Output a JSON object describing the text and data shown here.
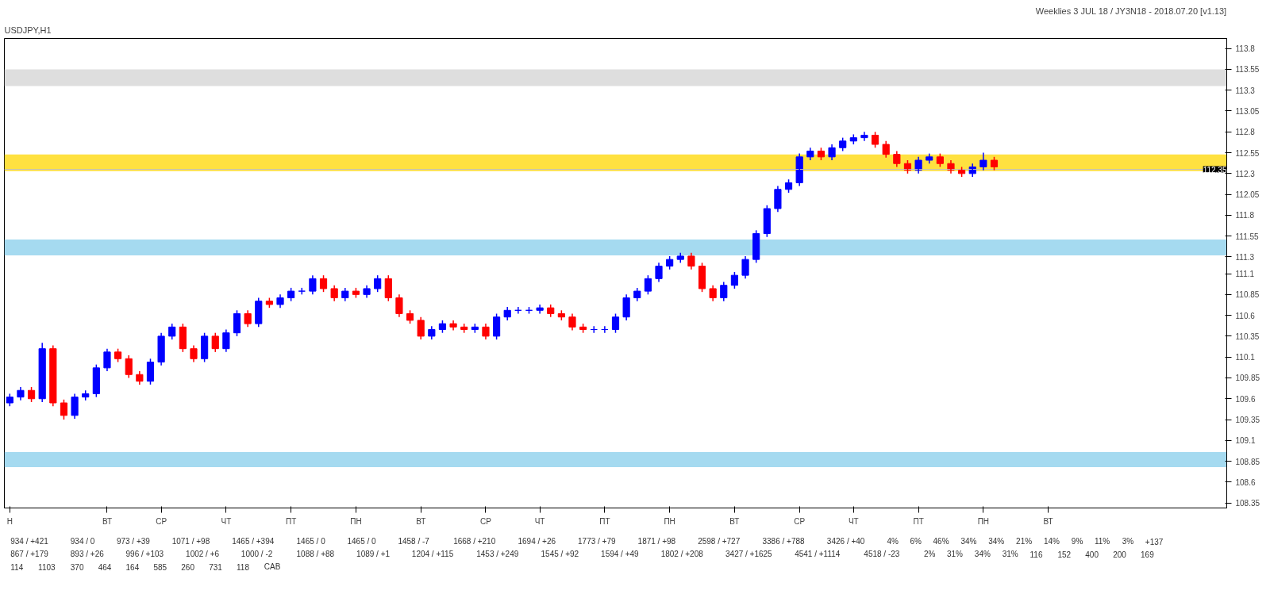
{
  "chart_data": {
    "type": "candlestick",
    "title": "USDJPY,H1",
    "subtitle": "Weeklies 3 JUL 18 / JY3N18 - 2018.07.20 [v1.13]",
    "categories": [
      "Н",
      null,
      null,
      null,
      null,
      null,
      null,
      null,
      null,
      "ВТ",
      null,
      null,
      null,
      null,
      "СР",
      null,
      null,
      null,
      null,
      null,
      "ЧТ",
      null,
      null,
      null,
      null,
      null,
      "ПТ",
      null,
      null,
      null,
      null,
      null,
      "ПН",
      null,
      null,
      null,
      null,
      null,
      "ВТ",
      null,
      null,
      null,
      null,
      null,
      "СР",
      null,
      null,
      null,
      null,
      "ЧТ",
      null,
      null,
      null,
      null,
      null,
      "ПТ",
      null,
      null,
      null,
      null,
      null,
      "ПН",
      null,
      null,
      null,
      null,
      null,
      "ВТ",
      null,
      null,
      null,
      null,
      null,
      "СР",
      null,
      null,
      null,
      null,
      "ЧТ",
      null,
      null,
      null,
      null,
      null,
      "ПТ",
      null,
      null,
      null,
      null,
      null,
      "ПН",
      null,
      null,
      null,
      null,
      null,
      "ВТ",
      null,
      null,
      null,
      null,
      null,
      null,
      null,
      null,
      null,
      null,
      null,
      null,
      null,
      null,
      null,
      null
    ],
    "ohlc": [
      [
        109.55,
        109.66,
        109.51,
        109.62
      ],
      [
        109.62,
        109.74,
        109.58,
        109.7
      ],
      [
        109.7,
        109.74,
        109.56,
        109.6
      ],
      [
        109.6,
        110.27,
        109.56,
        110.2
      ],
      [
        110.2,
        110.24,
        109.51,
        109.55
      ],
      [
        109.55,
        109.59,
        109.35,
        109.4
      ],
      [
        109.4,
        109.66,
        109.36,
        109.62
      ],
      [
        109.62,
        109.7,
        109.58,
        109.66
      ],
      [
        109.66,
        110.01,
        109.62,
        109.97
      ],
      [
        109.97,
        110.2,
        109.93,
        110.16
      ],
      [
        110.16,
        110.2,
        110.04,
        110.08
      ],
      [
        110.08,
        110.12,
        109.85,
        109.89
      ],
      [
        109.89,
        109.93,
        109.77,
        109.81
      ],
      [
        109.81,
        110.08,
        109.77,
        110.04
      ],
      [
        110.04,
        110.39,
        110.0,
        110.35
      ],
      [
        110.35,
        110.5,
        110.31,
        110.46
      ],
      [
        110.46,
        110.5,
        110.16,
        110.2
      ],
      [
        110.2,
        110.24,
        110.04,
        110.08
      ],
      [
        110.08,
        110.39,
        110.04,
        110.35
      ],
      [
        110.35,
        110.39,
        110.16,
        110.2
      ],
      [
        110.2,
        110.43,
        110.16,
        110.39
      ],
      [
        110.39,
        110.66,
        110.35,
        110.62
      ],
      [
        110.62,
        110.66,
        110.46,
        110.5
      ],
      [
        110.5,
        110.81,
        110.46,
        110.77
      ],
      [
        110.77,
        110.81,
        110.69,
        110.73
      ],
      [
        110.73,
        110.85,
        110.69,
        110.81
      ],
      [
        110.81,
        110.93,
        110.77,
        110.89
      ],
      [
        110.89,
        110.93,
        110.85,
        110.89
      ],
      [
        110.89,
        111.08,
        110.85,
        111.04
      ],
      [
        111.04,
        111.08,
        110.88,
        110.92
      ],
      [
        110.92,
        110.96,
        110.77,
        110.81
      ],
      [
        110.81,
        110.93,
        110.77,
        110.89
      ],
      [
        110.89,
        110.93,
        110.81,
        110.85
      ],
      [
        110.85,
        110.96,
        110.81,
        110.92
      ],
      [
        110.92,
        111.08,
        110.88,
        111.04
      ],
      [
        111.04,
        111.08,
        110.77,
        110.81
      ],
      [
        110.81,
        110.85,
        110.58,
        110.62
      ],
      [
        110.62,
        110.66,
        110.5,
        110.54
      ],
      [
        110.54,
        110.58,
        110.31,
        110.35
      ],
      [
        110.35,
        110.47,
        110.31,
        110.43
      ],
      [
        110.43,
        110.54,
        110.39,
        110.5
      ],
      [
        110.5,
        110.54,
        110.42,
        110.46
      ],
      [
        110.46,
        110.5,
        110.39,
        110.43
      ],
      [
        110.43,
        110.5,
        110.39,
        110.46
      ],
      [
        110.46,
        110.5,
        110.31,
        110.35
      ],
      [
        110.35,
        110.62,
        110.31,
        110.58
      ],
      [
        110.58,
        110.7,
        110.54,
        110.66
      ],
      [
        110.66,
        110.7,
        110.62,
        110.66
      ],
      [
        110.66,
        110.7,
        110.62,
        110.66
      ],
      [
        110.66,
        110.73,
        110.62,
        110.69
      ],
      [
        110.69,
        110.73,
        110.58,
        110.62
      ],
      [
        110.62,
        110.66,
        110.54,
        110.58
      ],
      [
        110.58,
        110.62,
        110.42,
        110.46
      ],
      [
        110.46,
        110.5,
        110.39,
        110.43
      ],
      [
        110.43,
        110.47,
        110.39,
        110.43
      ],
      [
        110.43,
        110.47,
        110.39,
        110.43
      ],
      [
        110.43,
        110.62,
        110.39,
        110.58
      ],
      [
        110.58,
        110.85,
        110.54,
        110.81
      ],
      [
        110.81,
        110.93,
        110.77,
        110.89
      ],
      [
        110.89,
        111.08,
        110.85,
        111.04
      ],
      [
        111.04,
        111.23,
        111.0,
        111.19
      ],
      [
        111.19,
        111.31,
        111.15,
        111.27
      ],
      [
        111.27,
        111.35,
        111.23,
        111.31
      ],
      [
        111.31,
        111.35,
        111.15,
        111.19
      ],
      [
        111.19,
        111.23,
        110.88,
        110.92
      ],
      [
        110.92,
        110.96,
        110.77,
        110.81
      ],
      [
        110.81,
        111.0,
        110.77,
        110.96
      ],
      [
        110.96,
        111.12,
        110.92,
        111.08
      ],
      [
        111.08,
        111.31,
        111.04,
        111.27
      ],
      [
        111.27,
        111.62,
        111.23,
        111.58
      ],
      [
        111.58,
        111.92,
        111.54,
        111.88
      ],
      [
        111.88,
        112.15,
        111.84,
        112.11
      ],
      [
        112.11,
        112.23,
        112.07,
        112.19
      ],
      [
        112.19,
        112.54,
        112.15,
        112.5
      ],
      [
        112.5,
        112.61,
        112.46,
        112.57
      ],
      [
        112.57,
        112.61,
        112.46,
        112.5
      ],
      [
        112.5,
        112.65,
        112.46,
        112.61
      ],
      [
        112.61,
        112.73,
        112.57,
        112.69
      ],
      [
        112.69,
        112.77,
        112.65,
        112.73
      ],
      [
        112.73,
        112.8,
        112.69,
        112.76
      ],
      [
        112.76,
        112.8,
        112.61,
        112.65
      ],
      [
        112.65,
        112.69,
        112.49,
        112.53
      ],
      [
        112.53,
        112.57,
        112.38,
        112.42
      ],
      [
        112.42,
        112.46,
        112.3,
        112.34
      ],
      [
        112.34,
        112.5,
        112.3,
        112.46
      ],
      [
        112.46,
        112.54,
        112.42,
        112.5
      ],
      [
        112.5,
        112.54,
        112.38,
        112.42
      ],
      [
        112.42,
        112.46,
        112.3,
        112.34
      ],
      [
        112.34,
        112.38,
        112.26,
        112.3
      ],
      [
        112.3,
        112.42,
        112.26,
        112.38
      ],
      [
        112.38,
        112.55,
        112.34,
        112.46
      ],
      [
        112.46,
        112.5,
        112.34,
        112.38
      ],
      null,
      null,
      null,
      null,
      null,
      null,
      null,
      null,
      null,
      null,
      null,
      null,
      null,
      null,
      null,
      null,
      null,
      null,
      null,
      null,
      null
    ],
    "colors": [
      "#0000ff",
      "#0000ff",
      "#ff0000",
      "#0000ff",
      "#ff0000",
      "#ff0000",
      "#0000ff",
      "#0000ff",
      "#0000ff",
      "#0000ff",
      "#ff0000",
      "#ff0000",
      "#ff0000",
      "#0000ff",
      "#0000ff",
      "#0000ff",
      "#ff0000",
      "#ff0000",
      "#0000ff",
      "#ff0000",
      "#0000ff",
      "#0000ff",
      "#ff0000",
      "#0000ff",
      "#ff0000",
      "#0000ff",
      "#0000ff",
      "#0000ff",
      "#0000ff",
      "#ff0000",
      "#ff0000",
      "#0000ff",
      "#ff0000",
      "#0000ff",
      "#0000ff",
      "#ff0000",
      "#ff0000",
      "#ff0000",
      "#ff0000",
      "#0000ff",
      "#0000ff",
      "#ff0000",
      "#ff0000",
      "#0000ff",
      "#ff0000",
      "#0000ff",
      "#0000ff",
      "#0000ff",
      "#0000ff",
      "#0000ff",
      "#ff0000",
      "#ff0000",
      "#ff0000",
      "#ff0000",
      "#0000ff",
      "#0000ff",
      "#0000ff",
      "#0000ff",
      "#0000ff",
      "#0000ff",
      "#0000ff",
      "#0000ff",
      "#0000ff",
      "#ff0000",
      "#ff0000",
      "#ff0000",
      "#0000ff",
      "#0000ff",
      "#0000ff",
      "#0000ff",
      "#0000ff",
      "#0000ff",
      "#0000ff",
      "#0000ff",
      "#0000ff",
      "#ff0000",
      "#0000ff",
      "#0000ff",
      "#0000ff",
      "#0000ff",
      "#ff0000",
      "#ff0000",
      "#ff0000",
      "#ff0000",
      "#0000ff",
      "#0000ff",
      "#ff0000",
      "#ff0000",
      "#ff0000",
      "#0000ff",
      "#0000ff",
      "#ff0000",
      null,
      null,
      null,
      null,
      null,
      null,
      null,
      null,
      null,
      null,
      null,
      null,
      null,
      null,
      null,
      null,
      null,
      null,
      null,
      null,
      null
    ],
    "ylim": [
      108.29,
      113.92
    ],
    "yticks": [
      113.8,
      113.55,
      113.3,
      113.05,
      112.8,
      112.55,
      112.3,
      112.05,
      111.8,
      111.55,
      111.3,
      111.1,
      110.85,
      110.6,
      110.35,
      110.1,
      109.85,
      109.6,
      109.35,
      109.1,
      108.85,
      108.6,
      108.35
    ],
    "grid": false,
    "bands": [
      {
        "axis": "y",
        "from": 113.35,
        "to": 113.55,
        "color": "#d3d3d3"
      },
      {
        "axis": "y",
        "from": 112.33,
        "to": 112.53,
        "color": "#ffd700"
      },
      {
        "axis": "y",
        "from": 111.32,
        "to": 111.51,
        "color": "#87ceeb"
      },
      {
        "axis": "y",
        "from": 108.78,
        "to": 108.96,
        "color": "#87ceeb"
      }
    ],
    "ref_lines": [
      {
        "axis": "y",
        "value": 112.35,
        "label": "112.35",
        "color": "#c0c0c0",
        "line_style": "solid"
      }
    ],
    "annotations": [
      "934 / +421",
      "934 / 0",
      "973 / +39",
      "1071 / +98",
      "1465 / +394",
      "1465 / 0",
      "1465 / 0",
      "1458 / -7",
      "1668 / +210",
      "1694 / +26",
      "1773 / +79",
      "1871 / +98",
      "2598 / +727",
      "3386 / +788",
      "3426 / +40",
      "4%",
      "6%",
      "46%",
      "34%",
      "34%",
      "21%",
      "14%",
      "9%",
      "11%",
      "3%",
      "+137",
      "867 / +179",
      "893 / +26",
      "996 / +103",
      "1002 / +6",
      "1000 / -2",
      "1088 / +88",
      "1089 / +1",
      "1204 / +115",
      "1453 / +249",
      "1545 / +92",
      "1594 / +49",
      "1802 / +208",
      "3427 / +1625",
      "4541 / +1114",
      "4518 / -23",
      "2%",
      "31%",
      "34%",
      "31%",
      "116",
      "152",
      "400",
      "200",
      "169",
      "114",
      "1103",
      "370",
      "464",
      "164",
      "585",
      "260",
      "731",
      "118",
      "CAB"
    ]
  }
}
